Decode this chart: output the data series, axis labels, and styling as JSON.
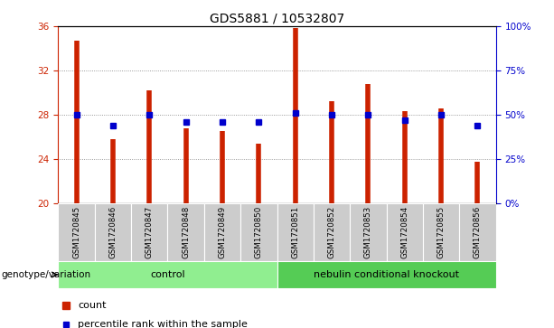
{
  "title": "GDS5881 / 10532807",
  "samples": [
    "GSM1720845",
    "GSM1720846",
    "GSM1720847",
    "GSM1720848",
    "GSM1720849",
    "GSM1720850",
    "GSM1720851",
    "GSM1720852",
    "GSM1720853",
    "GSM1720854",
    "GSM1720855",
    "GSM1720856"
  ],
  "counts": [
    34.7,
    25.8,
    30.2,
    26.8,
    26.5,
    25.4,
    35.8,
    29.2,
    30.8,
    28.3,
    28.6,
    23.8
  ],
  "percentiles": [
    50,
    44,
    50,
    46,
    46,
    46,
    51,
    50,
    50,
    47,
    50,
    44
  ],
  "ylim_left": [
    20,
    36
  ],
  "ylim_right": [
    0,
    100
  ],
  "yticks_left": [
    20,
    24,
    28,
    32,
    36
  ],
  "yticks_right": [
    0,
    25,
    50,
    75,
    100
  ],
  "ytick_labels_right": [
    "0%",
    "25%",
    "50%",
    "75%",
    "100%"
  ],
  "bar_color": "#cc2200",
  "dot_color": "#0000cc",
  "groups": [
    {
      "label": "control",
      "start": 0,
      "end": 5,
      "color": "#90ee90"
    },
    {
      "label": "nebulin conditional knockout",
      "start": 6,
      "end": 11,
      "color": "#55cc55"
    }
  ],
  "group_label_prefix": "genotype/variation",
  "legend_count_label": "count",
  "legend_pct_label": "percentile rank within the sample",
  "title_fontsize": 10,
  "tick_fontsize": 7.5,
  "axis_color_left": "#cc2200",
  "axis_color_right": "#0000cc",
  "grid_linestyle": ":",
  "grid_linewidth": 0.7,
  "sample_bg_color": "#cccccc",
  "sample_label_fontsize": 6.2
}
